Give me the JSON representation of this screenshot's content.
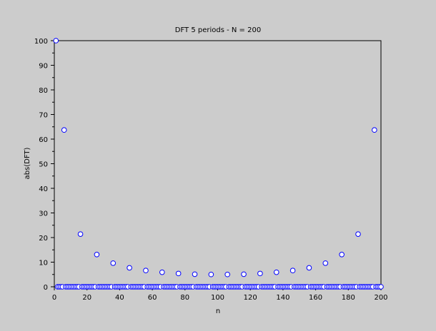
{
  "chart_data": {
    "type": "scatter",
    "title": "DFT 5 periods - N = 200",
    "xlabel": "n",
    "ylabel": "abs(DFT)",
    "xlim": [
      0,
      200
    ],
    "ylim": [
      0,
      100
    ],
    "x_ticks": [
      0,
      20,
      40,
      60,
      80,
      100,
      120,
      140,
      160,
      180,
      200
    ],
    "y_ticks": [
      0,
      10,
      20,
      30,
      40,
      50,
      60,
      70,
      80,
      90,
      100
    ],
    "grid": false,
    "marker": "open circle",
    "colors": {
      "marker": "#0000ff",
      "background": "#cccccc",
      "axis": "#000000"
    },
    "n_range": [
      1,
      200
    ],
    "nonzero_points": [
      {
        "n": 1,
        "y": 100
      },
      {
        "n": 6,
        "y": 63.7
      },
      {
        "n": 16,
        "y": 21.4
      },
      {
        "n": 26,
        "y": 13.1
      },
      {
        "n": 36,
        "y": 9.6
      },
      {
        "n": 46,
        "y": 7.7
      },
      {
        "n": 56,
        "y": 6.6
      },
      {
        "n": 66,
        "y": 5.9
      },
      {
        "n": 76,
        "y": 5.4
      },
      {
        "n": 86,
        "y": 5.1
      },
      {
        "n": 96,
        "y": 5.0
      },
      {
        "n": 106,
        "y": 5.0
      },
      {
        "n": 116,
        "y": 5.1
      },
      {
        "n": 126,
        "y": 5.4
      },
      {
        "n": 136,
        "y": 5.9
      },
      {
        "n": 146,
        "y": 6.6
      },
      {
        "n": 156,
        "y": 7.7
      },
      {
        "n": 166,
        "y": 9.6
      },
      {
        "n": 176,
        "y": 13.1
      },
      {
        "n": 186,
        "y": 21.4
      },
      {
        "n": 196,
        "y": 63.7
      }
    ],
    "other_points_value": 0
  }
}
